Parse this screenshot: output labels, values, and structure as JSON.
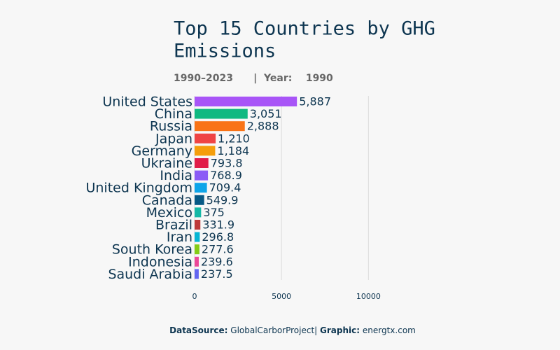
{
  "chart_data": {
    "type": "bar",
    "orientation": "horizontal",
    "title_lines": [
      "Top  15  Countries   by  GHG",
      "Emissions"
    ],
    "subtitle": "1990–2023      |  Year:    1990",
    "categories": [
      "United States",
      "China",
      "Russia",
      "Japan",
      "Germany",
      "Ukraine",
      "India",
      "United Kingdom",
      "Canada",
      "Mexico",
      "Brazil",
      "Iran",
      "South Korea",
      "Indonesia",
      "Saudi Arabia"
    ],
    "values": [
      5887,
      3051,
      2888,
      1210,
      1184,
      793.8,
      768.9,
      709.4,
      549.9,
      375,
      331.9,
      296.8,
      277.6,
      239.6,
      237.5
    ],
    "value_labels": [
      "5,887",
      "3,051",
      "2,888",
      "1,210",
      "1,184",
      "793.8",
      "768.9",
      "709.4",
      "549.9",
      "375",
      "331.9",
      "296.8",
      "277.6",
      "239.6",
      "237.5"
    ],
    "colors": [
      "#a855f7",
      "#10b981",
      "#f97316",
      "#ef4444",
      "#f59e0b",
      "#e11d48",
      "#8b5cf6",
      "#0ea5e9",
      "#075985",
      "#14b8a6",
      "#be3a3a",
      "#06b6d4",
      "#84cc16",
      "#ec4899",
      "#6366f1"
    ],
    "xlim": [
      0,
      12000
    ],
    "xticks": [
      0,
      5000,
      10000
    ],
    "grid": true,
    "footer": {
      "source_label": "DataSource:",
      "source": "GlobalCarborProject|",
      "graphic_label": "Graphic:",
      "graphic": "energtx.com"
    }
  }
}
